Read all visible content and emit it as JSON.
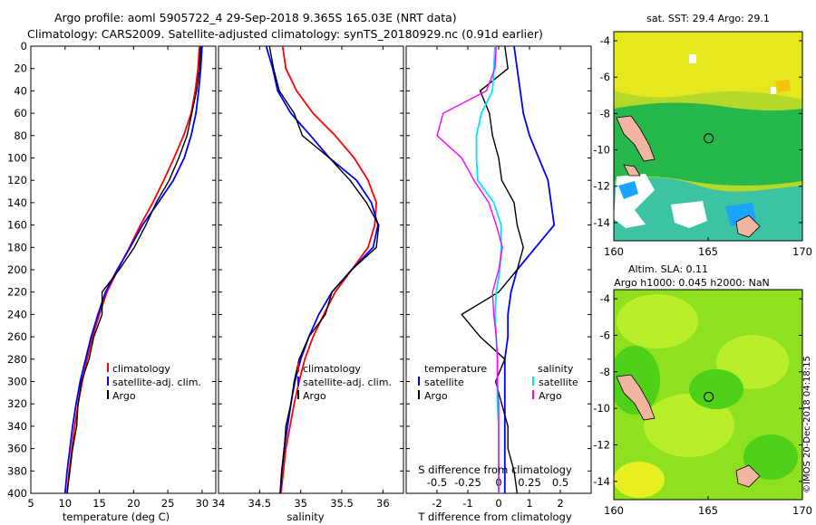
{
  "titles": {
    "line1": "Argo profile: aoml 5905722_4 29-Sep-2018 9.365S 165.03E (NRT data)",
    "line2": "Climatology: CARS2009. Satellite-adjusted climatology: synTS_20180929.nc (0.91d earlier)"
  },
  "colors": {
    "climatology": "#ff0000",
    "satellite": "#0000ff",
    "argo": "#000000",
    "s_satellite": "#00e5ff",
    "s_argo": "#ff00ff"
  },
  "chart_data": [
    {
      "type": "line",
      "id": "temperature",
      "xlabel": "temperature (deg C)",
      "ylabel": "",
      "xlim": [
        5,
        32
      ],
      "ylim": [
        400,
        0
      ],
      "xticks": [
        "5",
        "10",
        "15",
        "20",
        "25",
        "30"
      ],
      "yticks": [
        "0",
        "20",
        "40",
        "60",
        "80",
        "100",
        "120",
        "140",
        "160",
        "180",
        "200",
        "220",
        "240",
        "260",
        "280",
        "300",
        "320",
        "340",
        "360",
        "380",
        "400"
      ],
      "legend": [
        "climatology",
        "satellite-adj. clim.",
        "Argo"
      ],
      "series": [
        {
          "name": "climatology",
          "depth": [
            0,
            20,
            40,
            60,
            80,
            100,
            120,
            140,
            160,
            180,
            200,
            220,
            240,
            260,
            280,
            300,
            320,
            340,
            360,
            380,
            400
          ],
          "values": [
            29.6,
            29.4,
            29.0,
            28.4,
            27.3,
            25.9,
            24.4,
            22.8,
            21.0,
            19.4,
            17.7,
            16.1,
            15.0,
            14.0,
            13.2,
            12.5,
            11.9,
            11.4,
            11.0,
            10.6,
            10.3
          ]
        },
        {
          "name": "satellite-adj. clim.",
          "depth": [
            0,
            20,
            40,
            60,
            80,
            100,
            120,
            140,
            160,
            180,
            200,
            220,
            240,
            260,
            280,
            300,
            320,
            340,
            360,
            380,
            400
          ],
          "values": [
            30.0,
            29.8,
            29.5,
            29.1,
            28.4,
            27.4,
            25.8,
            23.6,
            21.3,
            19.5,
            17.6,
            15.9,
            14.8,
            13.8,
            13.0,
            12.2,
            11.6,
            11.1,
            10.7,
            10.3,
            10.0
          ]
        },
        {
          "name": "Argo",
          "depth": [
            0,
            20,
            40,
            60,
            80,
            100,
            120,
            140,
            160,
            180,
            200,
            220,
            240,
            260,
            280,
            300,
            320,
            340,
            360,
            380,
            400
          ],
          "values": [
            29.8,
            29.6,
            29.2,
            28.5,
            27.8,
            26.6,
            25.2,
            23.3,
            21.8,
            20.1,
            17.9,
            15.4,
            15.4,
            14.2,
            13.5,
            12.4,
            11.9,
            11.7,
            11.1,
            10.7,
            10.3
          ]
        }
      ]
    },
    {
      "type": "line",
      "id": "salinity",
      "xlabel": "salinity",
      "xlim": [
        34,
        36.25
      ],
      "ylim": [
        400,
        0
      ],
      "xticks": [
        "34",
        "34.5",
        "35",
        "35.5",
        "36"
      ],
      "legend": [
        "climatology",
        "satellite-adj. clim.",
        "Argo"
      ],
      "series": [
        {
          "name": "climatology",
          "depth": [
            0,
            20,
            40,
            60,
            80,
            100,
            120,
            140,
            160,
            180,
            200,
            220,
            240,
            260,
            280,
            300,
            320,
            340,
            360,
            380,
            400
          ],
          "values": [
            34.78,
            34.82,
            34.95,
            35.15,
            35.42,
            35.65,
            35.82,
            35.92,
            35.9,
            35.82,
            35.62,
            35.42,
            35.28,
            35.15,
            35.05,
            34.98,
            34.92,
            34.87,
            34.82,
            34.79,
            34.76
          ]
        },
        {
          "name": "satellite-adj. clim.",
          "depth": [
            0,
            20,
            40,
            60,
            80,
            100,
            120,
            140,
            160,
            180,
            200,
            220,
            240,
            260,
            280,
            300,
            320,
            340,
            360,
            380,
            400
          ],
          "values": [
            34.58,
            34.66,
            34.72,
            34.88,
            35.12,
            35.35,
            35.68,
            35.86,
            35.94,
            35.88,
            35.62,
            35.38,
            35.22,
            35.1,
            35.0,
            34.93,
            34.88,
            34.84,
            34.8,
            34.77,
            34.75
          ]
        },
        {
          "name": "Argo",
          "depth": [
            0,
            20,
            40,
            60,
            80,
            100,
            120,
            140,
            160,
            180,
            200,
            220,
            240,
            260,
            280,
            300,
            320,
            340,
            360,
            380,
            400
          ],
          "values": [
            34.62,
            34.67,
            34.74,
            34.92,
            35.02,
            35.35,
            35.6,
            35.8,
            35.95,
            35.92,
            35.62,
            35.38,
            35.3,
            35.1,
            34.98,
            34.92,
            34.88,
            34.82,
            34.8,
            34.77,
            34.75
          ]
        }
      ]
    },
    {
      "type": "line",
      "id": "differences",
      "xlabel": "T difference from climatology",
      "xlabel_top": "S difference from climatology",
      "xlim": [
        -3,
        3
      ],
      "ylim": [
        400,
        0
      ],
      "xticks": [
        "-2",
        "-1",
        "0",
        "1",
        "2"
      ],
      "xticks_s": [
        "-0.5",
        "-0.25",
        "0",
        "0.25",
        "0.5"
      ],
      "legend_temperature_title": "temperature",
      "legend_salinity_title": "salinity",
      "legend": {
        "t_satellite": "satellite",
        "t_argo": "Argo",
        "s_satellite": "satellite",
        "s_argo": "Argo"
      },
      "series": [
        {
          "name": "T satellite",
          "depth": [
            0,
            20,
            40,
            60,
            80,
            100,
            120,
            140,
            160,
            180,
            200,
            220,
            240,
            260,
            280,
            300,
            320,
            340,
            360,
            380,
            400
          ],
          "values": [
            0.5,
            0.6,
            0.7,
            0.8,
            1.0,
            1.3,
            1.6,
            1.7,
            1.8,
            1.2,
            0.6,
            0.4,
            0.3,
            0.3,
            0.2,
            0.2,
            0.2,
            0.2,
            0.2,
            0.2,
            0.2
          ]
        },
        {
          "name": "T Argo",
          "depth": [
            0,
            20,
            40,
            60,
            80,
            100,
            120,
            140,
            160,
            180,
            200,
            220,
            240,
            260,
            280,
            300,
            320,
            340,
            360,
            380,
            400
          ],
          "values": [
            0.2,
            0.3,
            -0.6,
            -0.3,
            -0.2,
            0.0,
            0.1,
            0.5,
            0.6,
            0.8,
            0.6,
            0.0,
            -1.2,
            -0.6,
            0.2,
            -0.1,
            0.1,
            0.3,
            0.3,
            0.5,
            0.6
          ]
        },
        {
          "name": "S satellite",
          "depth": [
            0,
            20,
            40,
            60,
            80,
            100,
            120,
            140,
            160,
            180,
            200,
            220,
            240,
            260,
            280,
            300,
            320,
            340,
            360,
            380,
            400
          ],
          "values": [
            -0.03,
            -0.04,
            -0.05,
            -0.14,
            -0.18,
            -0.18,
            -0.17,
            -0.04,
            0.02,
            0.02,
            0.01,
            -0.02,
            -0.03,
            -0.02,
            -0.01,
            -0.01,
            -0.01,
            0.0,
            0.0,
            0.0,
            0.0
          ]
        },
        {
          "name": "S Argo",
          "depth": [
            0,
            20,
            40,
            60,
            80,
            100,
            120,
            140,
            160,
            180,
            200,
            220,
            240,
            260,
            280,
            300,
            320,
            340,
            360,
            380,
            400
          ],
          "values": [
            -0.02,
            -0.03,
            -0.1,
            -0.45,
            -0.5,
            -0.3,
            -0.2,
            -0.08,
            -0.02,
            0.03,
            0.0,
            -0.05,
            -0.04,
            -0.02,
            -0.01,
            -0.01,
            0.0,
            0.0,
            0.0,
            0.0,
            0.0
          ]
        }
      ]
    }
  ],
  "maps": {
    "sst": {
      "title": "sat. SST: 29.4 Argo: 29.1",
      "yticks": [
        "-4",
        "-6",
        "-8",
        "-10",
        "-12",
        "-14"
      ],
      "xticks": [
        "160",
        "165",
        "170"
      ],
      "argo_lon": 165.03,
      "argo_lat": -9.365,
      "lon_range": [
        160,
        170
      ],
      "lat_range": [
        -15,
        -3.5
      ]
    },
    "sla": {
      "title_line1": "Altim. SLA: 0.11",
      "title_line2": "Argo h1000: 0.045 h2000: NaN",
      "yticks": [
        "-4",
        "-6",
        "-8",
        "-10",
        "-12",
        "-14"
      ],
      "xticks": [
        "160",
        "165",
        "170"
      ],
      "argo_lon": 165.03,
      "argo_lat": -9.365,
      "lon_range": [
        160,
        170
      ],
      "lat_range": [
        -15,
        -3.5
      ]
    }
  },
  "stamp": "©IMOS 20-Dec-2018 04:18:15"
}
